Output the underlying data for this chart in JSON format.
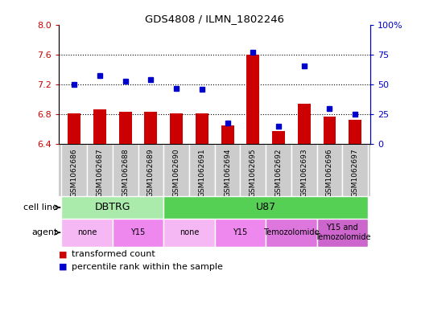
{
  "title": "GDS4808 / ILMN_1802246",
  "samples": [
    "GSM1062686",
    "GSM1062687",
    "GSM1062688",
    "GSM1062689",
    "GSM1062690",
    "GSM1062691",
    "GSM1062694",
    "GSM1062695",
    "GSM1062692",
    "GSM1062693",
    "GSM1062696",
    "GSM1062697"
  ],
  "transformed_count": [
    6.81,
    6.87,
    6.84,
    6.84,
    6.81,
    6.81,
    6.65,
    7.61,
    6.58,
    6.95,
    6.77,
    6.73
  ],
  "percentile_rank": [
    50,
    58,
    53,
    54,
    47,
    46,
    18,
    77,
    15,
    66,
    30,
    25
  ],
  "bar_color": "#cc0000",
  "dot_color": "#0000cc",
  "ylim_left": [
    6.4,
    8.0
  ],
  "ylim_right": [
    0,
    100
  ],
  "yticks_left": [
    6.4,
    6.8,
    7.2,
    7.6,
    8.0
  ],
  "yticks_right": [
    0,
    25,
    50,
    75,
    100
  ],
  "ytick_labels_right": [
    "0",
    "25",
    "50",
    "75",
    "100%"
  ],
  "dotted_line_values": [
    6.8,
    7.2,
    7.6
  ],
  "cell_line_groups": [
    {
      "label": "DBTRG",
      "start": 0,
      "end": 4,
      "color": "#aaeaaa"
    },
    {
      "label": "U87",
      "start": 4,
      "end": 12,
      "color": "#55d055"
    }
  ],
  "agent_groups": [
    {
      "label": "none",
      "start": 0,
      "end": 2,
      "color": "#f5b8f5"
    },
    {
      "label": "Y15",
      "start": 2,
      "end": 4,
      "color": "#ee88ee"
    },
    {
      "label": "none",
      "start": 4,
      "end": 6,
      "color": "#f5b8f5"
    },
    {
      "label": "Y15",
      "start": 6,
      "end": 8,
      "color": "#ee88ee"
    },
    {
      "label": "Temozolomide",
      "start": 8,
      "end": 10,
      "color": "#dd77dd"
    },
    {
      "label": "Y15 and\nTemozolomide",
      "start": 10,
      "end": 12,
      "color": "#cc66cc"
    }
  ],
  "bar_width": 0.5,
  "background_color": "#ffffff",
  "tick_bg_color": "#cccccc",
  "legend_items": [
    {
      "label": "transformed count",
      "color": "#cc0000"
    },
    {
      "label": "percentile rank within the sample",
      "color": "#0000cc"
    }
  ]
}
